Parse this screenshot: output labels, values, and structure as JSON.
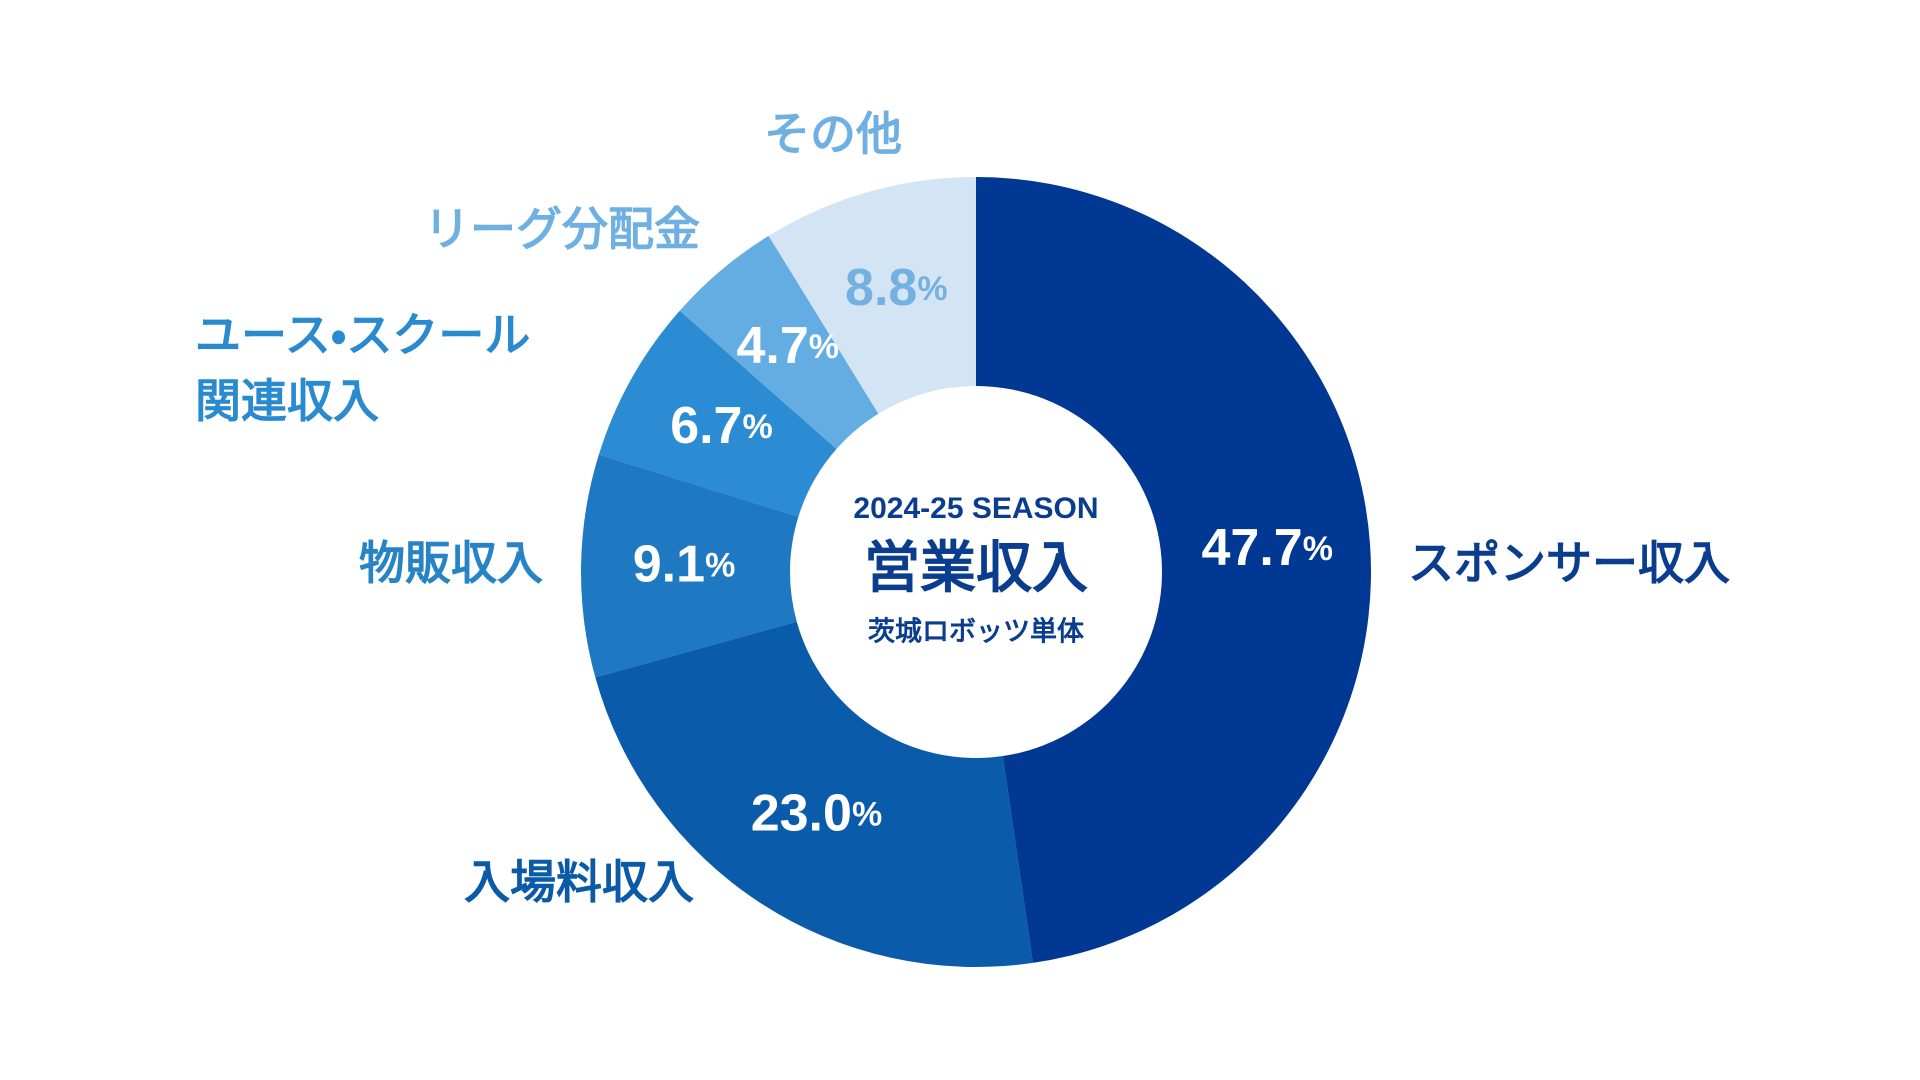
{
  "chart_data": {
    "type": "donut",
    "subtitle": "2024-25 SEASON",
    "title": "営業収入",
    "note": "茨城ロボッツ単体",
    "categories": [
      "スポンサー収入",
      "入場料収入",
      "物販収入",
      "ユース・スクール\n関連収入",
      "リーグ分配金",
      "その他"
    ],
    "values": [
      47.7,
      23.0,
      9.1,
      6.7,
      4.7,
      8.8
    ],
    "value_labels": [
      "47.7%",
      "23.0%",
      "9.1%",
      "6.7%",
      "4.7%",
      "8.8%"
    ],
    "colors": [
      "#003893",
      "#0a5cab",
      "#1e78c2",
      "#2b8cd3",
      "#63ade3",
      "#d3e4f5"
    ],
    "label_colors": [
      "#0b3d8f",
      "#0a5aa8",
      "#2683c6",
      "#2a8ad0",
      "#6eb0e2",
      "#6eb0e2"
    ],
    "value_label_colors": [
      "#ffffff",
      "#ffffff",
      "#ffffff",
      "#ffffff",
      "#ffffff",
      "#74b0e0"
    ]
  }
}
